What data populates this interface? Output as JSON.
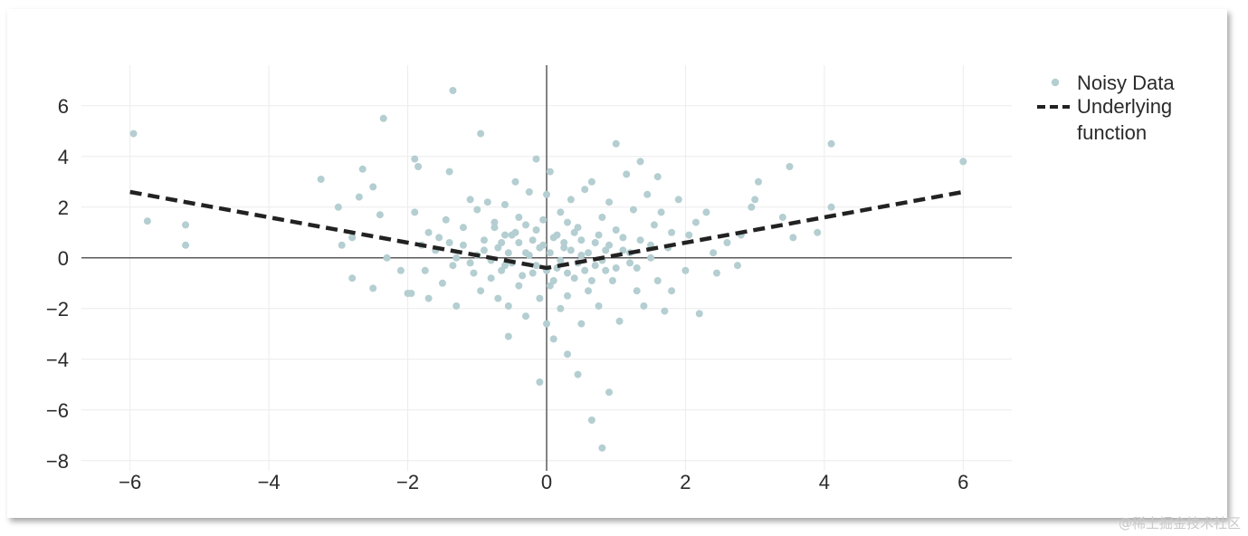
{
  "chart_data": {
    "type": "scatter",
    "title": "",
    "xlabel": "",
    "ylabel": "",
    "xlim": [
      -6.7,
      6.7
    ],
    "ylim": [
      -8.4,
      7.6
    ],
    "xticks": [
      -6,
      -4,
      -2,
      0,
      2,
      4,
      6
    ],
    "xtick_labels": [
      "−6",
      "−4",
      "−2",
      "0",
      "2",
      "4",
      "6"
    ],
    "yticks": [
      6,
      4,
      2,
      0,
      -2,
      -4,
      -6,
      -8
    ],
    "ytick_labels": [
      "6",
      "4",
      "2",
      "0",
      "−2",
      "−4",
      "−6",
      "−8"
    ],
    "grid": true,
    "legend_position": "right",
    "series": [
      {
        "name": "Noisy Data",
        "kind": "scatter",
        "color": "#b4ced1",
        "points": [
          [
            -5.95,
            4.9
          ],
          [
            -5.75,
            1.45
          ],
          [
            -5.2,
            1.3
          ],
          [
            -5.2,
            0.5
          ],
          [
            -3.25,
            3.1
          ],
          [
            -3.0,
            2.0
          ],
          [
            -2.95,
            0.5
          ],
          [
            -2.8,
            0.8
          ],
          [
            -2.8,
            -0.8
          ],
          [
            -2.7,
            2.4
          ],
          [
            -2.65,
            3.5
          ],
          [
            -2.5,
            2.8
          ],
          [
            -2.5,
            -1.2
          ],
          [
            -2.35,
            5.5
          ],
          [
            -2.4,
            1.7
          ],
          [
            -2.3,
            0.0
          ],
          [
            -2.1,
            -0.5
          ],
          [
            -2.0,
            -1.4
          ],
          [
            -1.9,
            1.8
          ],
          [
            -1.95,
            -1.4
          ],
          [
            -1.9,
            3.9
          ],
          [
            -1.85,
            3.6
          ],
          [
            -1.8,
            0.5
          ],
          [
            -1.75,
            -0.5
          ],
          [
            -1.7,
            1.0
          ],
          [
            -1.7,
            -1.6
          ],
          [
            -1.55,
            0.8
          ],
          [
            -1.5,
            -1.0
          ],
          [
            -1.45,
            1.5
          ],
          [
            -1.4,
            3.4
          ],
          [
            -1.35,
            -0.3
          ],
          [
            -1.3,
            -1.9
          ],
          [
            -1.35,
            6.6
          ],
          [
            -1.2,
            1.2
          ],
          [
            -1.1,
            2.3
          ],
          [
            -1.05,
            -0.6
          ],
          [
            -1.0,
            1.9
          ],
          [
            -0.95,
            4.9
          ],
          [
            -0.95,
            -1.3
          ],
          [
            -0.9,
            0.3
          ],
          [
            -0.85,
            2.2
          ],
          [
            -0.8,
            -0.8
          ],
          [
            -0.75,
            1.2
          ],
          [
            -0.7,
            -1.6
          ],
          [
            -0.65,
            0.6
          ],
          [
            -0.6,
            2.1
          ],
          [
            -0.6,
            -0.3
          ],
          [
            -0.55,
            -1.9
          ],
          [
            -0.55,
            -3.1
          ],
          [
            -0.5,
            0.9
          ],
          [
            -0.45,
            3.0
          ],
          [
            -0.4,
            -1.1
          ],
          [
            -0.4,
            1.6
          ],
          [
            -0.3,
            0.2
          ],
          [
            -0.3,
            -2.3
          ],
          [
            -0.25,
            2.6
          ],
          [
            -0.2,
            -0.6
          ],
          [
            -0.15,
            3.9
          ],
          [
            -0.15,
            1.1
          ],
          [
            -0.1,
            -1.6
          ],
          [
            -0.1,
            -4.9
          ],
          [
            -0.05,
            0.5
          ],
          [
            0.0,
            -2.6
          ],
          [
            0.0,
            2.5
          ],
          [
            0.05,
            -1.1
          ],
          [
            0.05,
            3.4
          ],
          [
            0.1,
            -3.2
          ],
          [
            0.1,
            0.8
          ],
          [
            0.15,
            -0.4
          ],
          [
            0.2,
            -2.0
          ],
          [
            0.2,
            1.8
          ],
          [
            0.25,
            0.4
          ],
          [
            0.3,
            -3.8
          ],
          [
            0.3,
            -1.5
          ],
          [
            0.35,
            2.3
          ],
          [
            0.4,
            -0.8
          ],
          [
            0.45,
            -4.6
          ],
          [
            0.45,
            1.2
          ],
          [
            0.5,
            -2.6
          ],
          [
            0.5,
            0.1
          ],
          [
            0.55,
            2.7
          ],
          [
            0.6,
            -1.3
          ],
          [
            0.65,
            3.0
          ],
          [
            0.65,
            -6.4
          ],
          [
            0.7,
            0.6
          ],
          [
            0.75,
            -1.9
          ],
          [
            0.8,
            1.6
          ],
          [
            0.8,
            -7.5
          ],
          [
            0.85,
            -0.5
          ],
          [
            0.9,
            2.2
          ],
          [
            0.9,
            -5.3
          ],
          [
            0.95,
            -0.9
          ],
          [
            1.0,
            1.1
          ],
          [
            1.0,
            4.5
          ],
          [
            1.05,
            -2.5
          ],
          [
            1.1,
            0.3
          ],
          [
            1.15,
            3.3
          ],
          [
            1.2,
            -0.2
          ],
          [
            1.25,
            1.9
          ],
          [
            1.3,
            -1.3
          ],
          [
            1.35,
            3.8
          ],
          [
            1.35,
            0.7
          ],
          [
            1.4,
            -1.9
          ],
          [
            1.45,
            2.5
          ],
          [
            1.5,
            0.0
          ],
          [
            1.55,
            1.3
          ],
          [
            1.6,
            -0.9
          ],
          [
            1.6,
            3.2
          ],
          [
            1.65,
            1.8
          ],
          [
            1.7,
            -2.1
          ],
          [
            1.75,
            0.4
          ],
          [
            1.8,
            1.0
          ],
          [
            1.8,
            -1.3
          ],
          [
            1.9,
            2.3
          ],
          [
            2.0,
            -0.5
          ],
          [
            2.05,
            0.9
          ],
          [
            2.15,
            1.4
          ],
          [
            2.2,
            -2.2
          ],
          [
            2.3,
            1.8
          ],
          [
            2.4,
            0.2
          ],
          [
            2.45,
            -0.6
          ],
          [
            2.6,
            0.6
          ],
          [
            2.75,
            -0.3
          ],
          [
            2.8,
            0.9
          ],
          [
            2.95,
            2.0
          ],
          [
            3.0,
            2.3
          ],
          [
            3.05,
            3.0
          ],
          [
            3.4,
            1.6
          ],
          [
            3.5,
            3.6
          ],
          [
            3.55,
            0.8
          ],
          [
            3.9,
            1.0
          ],
          [
            4.1,
            4.5
          ],
          [
            4.1,
            2.0
          ],
          [
            6.0,
            3.8
          ],
          [
            -0.7,
            0.4
          ],
          [
            -0.6,
            0.9
          ],
          [
            -0.5,
            -0.2
          ],
          [
            -0.4,
            0.6
          ],
          [
            -0.35,
            -0.7
          ],
          [
            -0.3,
            1.3
          ],
          [
            -0.25,
            0.1
          ],
          [
            -0.2,
            0.7
          ],
          [
            -0.15,
            -0.3
          ],
          [
            -0.1,
            0.4
          ],
          [
            0.0,
            -0.5
          ],
          [
            0.05,
            0.2
          ],
          [
            0.15,
            0.9
          ],
          [
            0.2,
            -0.1
          ],
          [
            0.25,
            0.6
          ],
          [
            0.3,
            -0.6
          ],
          [
            0.35,
            0.3
          ],
          [
            0.4,
            1.0
          ],
          [
            0.45,
            -0.2
          ],
          [
            0.5,
            0.7
          ],
          [
            0.55,
            -0.5
          ],
          [
            0.6,
            0.2
          ],
          [
            0.7,
            -0.3
          ],
          [
            0.75,
            0.9
          ],
          [
            0.8,
            -0.1
          ],
          [
            0.9,
            0.5
          ],
          [
            1.0,
            -0.4
          ],
          [
            1.1,
            0.8
          ],
          [
            1.2,
            0.2
          ],
          [
            -0.8,
            -0.1
          ],
          [
            -0.9,
            0.7
          ],
          [
            -1.0,
            0.1
          ],
          [
            -1.1,
            -0.2
          ],
          [
            -1.2,
            0.5
          ],
          [
            -1.3,
            0.0
          ],
          [
            -1.4,
            0.6
          ],
          [
            -0.65,
            -0.5
          ],
          [
            -0.45,
            1.0
          ],
          [
            -0.05,
            1.5
          ],
          [
            0.1,
            -0.9
          ],
          [
            0.3,
            1.4
          ],
          [
            0.65,
            -0.9
          ],
          [
            -0.75,
            1.4
          ],
          [
            -0.55,
            0.2
          ],
          [
            0.85,
            0.3
          ],
          [
            1.3,
            -0.4
          ],
          [
            1.5,
            0.5
          ],
          [
            -1.6,
            0.3
          ]
        ]
      },
      {
        "name": "Underlying function",
        "kind": "line",
        "style": "dashed",
        "color": "#222222",
        "x": [
          -6,
          -4,
          -2,
          -1,
          0,
          1,
          2,
          4,
          6
        ],
        "y": [
          2.6,
          1.6,
          0.6,
          0.1,
          -0.4,
          0.1,
          0.6,
          1.6,
          2.6
        ]
      }
    ]
  },
  "legend": {
    "scatter_label": "Noisy Data",
    "line_label_1": "Underlying",
    "line_label_2": "function"
  },
  "watermark": "@稀土掘金技术社区"
}
